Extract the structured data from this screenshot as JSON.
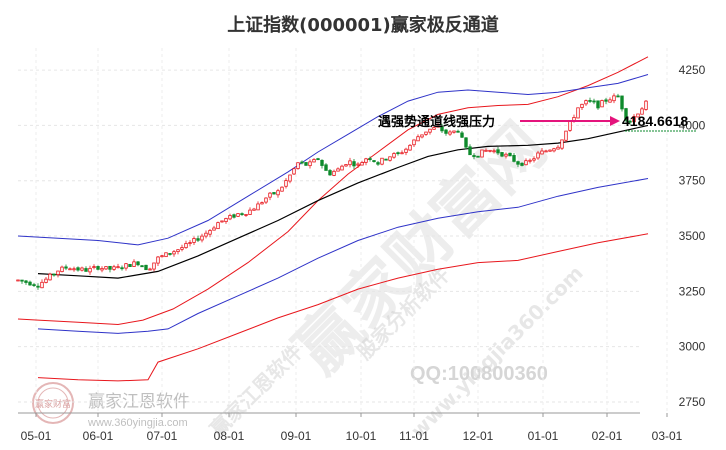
{
  "chart_data": {
    "type": "candlestick",
    "title": "上证指数(000001)赢家极反通道",
    "ylim": [
      2700,
      4350
    ],
    "yticks": [
      2750,
      3000,
      3250,
      3500,
      3750,
      4000,
      4250
    ],
    "ytick_labels": [
      "2750",
      "3000",
      "3250",
      "3500",
      "3750",
      "4000",
      "4250"
    ],
    "xticks": [
      "05-01",
      "06-01",
      "07-01",
      "08-01",
      "09-01",
      "10-01",
      "11-01",
      "12-01",
      "01-01",
      "02-01",
      "03-01"
    ],
    "grid": true,
    "series": [
      {
        "band": "upper-outer",
        "color": "#e8171d",
        "values": [
          [
            0,
            3125
          ],
          [
            20,
            3120
          ],
          [
            60,
            3110
          ],
          [
            100,
            3100
          ],
          [
            125,
            3120
          ],
          [
            155,
            3170
          ],
          [
            190,
            3260
          ],
          [
            230,
            3380
          ],
          [
            270,
            3520
          ],
          [
            300,
            3660
          ],
          [
            330,
            3780
          ],
          [
            360,
            3880
          ],
          [
            390,
            3980
          ],
          [
            420,
            4050
          ],
          [
            450,
            4080
          ],
          [
            480,
            4090
          ],
          [
            510,
            4095
          ],
          [
            540,
            4130
          ],
          [
            570,
            4180
          ],
          [
            600,
            4240
          ],
          [
            630,
            4310
          ]
        ]
      },
      {
        "band": "upper-inner",
        "color": "#2f33c8",
        "values": [
          [
            0,
            3500
          ],
          [
            40,
            3490
          ],
          [
            80,
            3480
          ],
          [
            120,
            3460
          ],
          [
            150,
            3490
          ],
          [
            190,
            3570
          ],
          [
            230,
            3680
          ],
          [
            270,
            3790
          ],
          [
            300,
            3880
          ],
          [
            330,
            3960
          ],
          [
            360,
            4040
          ],
          [
            390,
            4110
          ],
          [
            420,
            4150
          ],
          [
            450,
            4160
          ],
          [
            480,
            4150
          ],
          [
            510,
            4140
          ],
          [
            540,
            4150
          ],
          [
            570,
            4170
          ],
          [
            600,
            4190
          ],
          [
            630,
            4230
          ]
        ]
      },
      {
        "band": "middle",
        "color": "#000000",
        "values": [
          [
            20,
            3330
          ],
          [
            60,
            3320
          ],
          [
            100,
            3310
          ],
          [
            140,
            3340
          ],
          [
            180,
            3410
          ],
          [
            220,
            3490
          ],
          [
            260,
            3570
          ],
          [
            300,
            3660
          ],
          [
            340,
            3740
          ],
          [
            380,
            3810
          ],
          [
            410,
            3860
          ],
          [
            440,
            3890
          ],
          [
            470,
            3905
          ],
          [
            510,
            3910
          ],
          [
            540,
            3920
          ],
          [
            570,
            3940
          ],
          [
            600,
            3970
          ],
          [
            630,
            4000
          ]
        ]
      },
      {
        "band": "lower-inner",
        "color": "#2f33c8",
        "values": [
          [
            20,
            3080
          ],
          [
            60,
            3070
          ],
          [
            100,
            3060
          ],
          [
            130,
            3070
          ],
          [
            150,
            3080
          ],
          [
            180,
            3150
          ],
          [
            220,
            3230
          ],
          [
            260,
            3310
          ],
          [
            300,
            3400
          ],
          [
            340,
            3480
          ],
          [
            380,
            3540
          ],
          [
            420,
            3580
          ],
          [
            460,
            3610
          ],
          [
            500,
            3630
          ],
          [
            540,
            3680
          ],
          [
            580,
            3720
          ],
          [
            630,
            3760
          ]
        ]
      },
      {
        "band": "lower-outer",
        "color": "#e8171d",
        "values": [
          [
            20,
            2860
          ],
          [
            60,
            2850
          ],
          [
            100,
            2845
          ],
          [
            130,
            2850
          ],
          [
            140,
            2930
          ],
          [
            180,
            2990
          ],
          [
            220,
            3060
          ],
          [
            260,
            3130
          ],
          [
            300,
            3190
          ],
          [
            340,
            3260
          ],
          [
            380,
            3310
          ],
          [
            420,
            3350
          ],
          [
            460,
            3380
          ],
          [
            500,
            3390
          ],
          [
            540,
            3430
          ],
          [
            580,
            3470
          ],
          [
            630,
            3510
          ]
        ]
      }
    ],
    "candles_path": [
      [
        0,
        3300
      ],
      [
        10,
        3290
      ],
      [
        20,
        3280
      ],
      [
        30,
        3310
      ],
      [
        40,
        3345
      ],
      [
        50,
        3360
      ],
      [
        60,
        3350
      ],
      [
        70,
        3345
      ],
      [
        80,
        3360
      ],
      [
        90,
        3350
      ],
      [
        100,
        3355
      ],
      [
        110,
        3370
      ],
      [
        120,
        3380
      ],
      [
        130,
        3350
      ],
      [
        140,
        3400
      ],
      [
        150,
        3420
      ],
      [
        160,
        3440
      ],
      [
        170,
        3460
      ],
      [
        180,
        3490
      ],
      [
        190,
        3520
      ],
      [
        200,
        3560
      ],
      [
        210,
        3580
      ],
      [
        220,
        3600
      ],
      [
        230,
        3610
      ],
      [
        240,
        3640
      ],
      [
        250,
        3680
      ],
      [
        260,
        3700
      ],
      [
        270,
        3760
      ],
      [
        280,
        3830
      ],
      [
        290,
        3820
      ],
      [
        300,
        3850
      ],
      [
        310,
        3780
      ],
      [
        320,
        3800
      ],
      [
        330,
        3840
      ],
      [
        340,
        3820
      ],
      [
        350,
        3860
      ],
      [
        360,
        3830
      ],
      [
        370,
        3860
      ],
      [
        380,
        3870
      ],
      [
        390,
        3900
      ],
      [
        400,
        3950
      ],
      [
        410,
        3980
      ],
      [
        420,
        3990
      ],
      [
        430,
        3960
      ],
      [
        440,
        3980
      ],
      [
        450,
        3870
      ],
      [
        460,
        3870
      ],
      [
        470,
        3890
      ],
      [
        480,
        3880
      ],
      [
        490,
        3860
      ],
      [
        500,
        3830
      ],
      [
        510,
        3830
      ],
      [
        520,
        3870
      ],
      [
        530,
        3890
      ],
      [
        540,
        3910
      ],
      [
        550,
        3990
      ],
      [
        560,
        4080
      ],
      [
        570,
        4110
      ],
      [
        580,
        4090
      ],
      [
        590,
        4120
      ],
      [
        600,
        4130
      ],
      [
        610,
        4010
      ],
      [
        620,
        4060
      ],
      [
        630,
        4110
      ]
    ],
    "annotation": {
      "text": "遇强势通道线强压力",
      "value": "4184.6618",
      "level": 4184.6618,
      "color": "#e4147c"
    }
  },
  "watermark": {
    "brand": "赢家财富网",
    "software": "赢家江恩软件",
    "diag_text": "股家分析软件",
    "url_text": "www.yingjia360.com",
    "qq": "QQ:100800360",
    "logo_brand": "赢家江恩软件",
    "logo_url": "www.360yingjia.com",
    "logo_seal": "赢家财富"
  }
}
